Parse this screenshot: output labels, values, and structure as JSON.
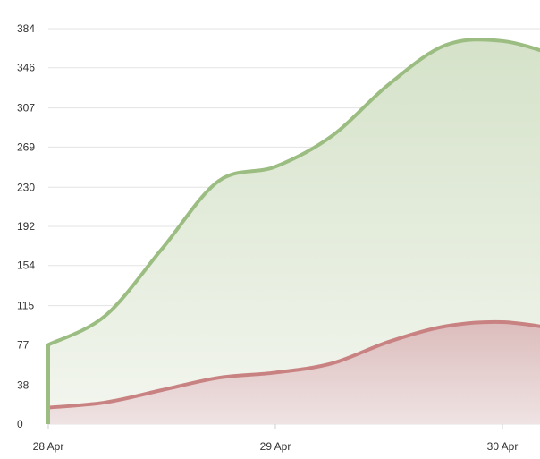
{
  "chart_data": {
    "type": "area",
    "x": [
      "28 Apr",
      "",
      "",
      "",
      "29 Apr",
      "",
      "",
      "",
      "30 Apr",
      ""
    ],
    "xticks": [
      "28 Apr",
      "29 Apr",
      "30 Apr"
    ],
    "yticks": [
      0,
      38,
      77,
      115,
      154,
      192,
      230,
      269,
      307,
      346,
      384
    ],
    "ylim": [
      0,
      384
    ],
    "grid": true,
    "series": [
      {
        "color": "#9bbd82",
        "fill_top": "#d5e2c9",
        "fill_bottom": "#f3f6ef",
        "values": [
          77,
          105,
          170,
          236,
          250,
          280,
          330,
          368,
          372,
          357
        ]
      },
      {
        "color": "#c98282",
        "fill_top": "#dcbcbc",
        "fill_bottom": "#efe3e3",
        "values": [
          16,
          21,
          33,
          45,
          50,
          59,
          80,
          95,
          99,
          92
        ]
      }
    ]
  }
}
